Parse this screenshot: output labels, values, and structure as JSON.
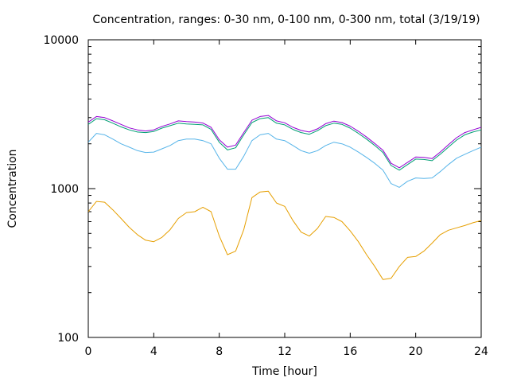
{
  "chart_data": {
    "type": "line",
    "title": "Concentration, ranges: 0-30 nm, 0-100 nm, 0-300 nm, total (3/19/19)",
    "xlabel": "Time [hour]",
    "ylabel": "Concentration",
    "xlim": [
      0,
      24
    ],
    "ylim": [
      100,
      10000
    ],
    "yscale": "log",
    "grid": false,
    "legend": "none",
    "xticks": [
      "0",
      "4",
      "8",
      "12",
      "16",
      "20",
      "24"
    ],
    "yticks": [
      "100",
      "1000",
      "10000"
    ],
    "x": [
      0,
      0.5,
      1,
      1.5,
      2,
      2.5,
      3,
      3.5,
      4,
      4.5,
      5,
      5.5,
      6,
      6.5,
      7,
      7.5,
      8,
      8.5,
      9,
      9.5,
      10,
      10.5,
      11,
      11.5,
      12,
      12.5,
      13,
      13.5,
      14,
      14.5,
      15,
      15.5,
      16,
      16.5,
      17,
      17.5,
      18,
      18.5,
      19,
      19.5,
      20,
      20.5,
      21,
      21.5,
      22,
      22.5,
      23,
      23.5,
      24
    ],
    "series": [
      {
        "color": "#e69f00",
        "values": [
          700,
          820,
          810,
          720,
          630,
          550,
          490,
          450,
          440,
          470,
          530,
          630,
          690,
          700,
          750,
          700,
          480,
          360,
          380,
          530,
          870,
          950,
          960,
          800,
          760,
          610,
          510,
          480,
          540,
          650,
          640,
          600,
          520,
          440,
          360,
          300,
          245,
          250,
          300,
          345,
          350,
          380,
          430,
          490,
          525,
          545,
          565,
          590,
          610
        ]
      },
      {
        "color": "#56b4e9",
        "values": [
          2050,
          2350,
          2300,
          2150,
          2000,
          1900,
          1800,
          1750,
          1760,
          1850,
          1950,
          2100,
          2150,
          2150,
          2100,
          2000,
          1600,
          1350,
          1350,
          1650,
          2100,
          2300,
          2350,
          2150,
          2100,
          1950,
          1800,
          1730,
          1800,
          1950,
          2050,
          2000,
          1900,
          1760,
          1620,
          1480,
          1330,
          1080,
          1020,
          1120,
          1180,
          1170,
          1180,
          1300,
          1450,
          1600,
          1700,
          1800,
          1900
        ]
      },
      {
        "color": "#009e73",
        "values": [
          2700,
          2950,
          2900,
          2750,
          2600,
          2480,
          2400,
          2380,
          2420,
          2550,
          2650,
          2750,
          2720,
          2700,
          2680,
          2500,
          2050,
          1820,
          1880,
          2300,
          2780,
          2950,
          3000,
          2750,
          2680,
          2500,
          2380,
          2320,
          2450,
          2650,
          2750,
          2700,
          2550,
          2350,
          2150,
          1950,
          1750,
          1430,
          1330,
          1450,
          1580,
          1570,
          1540,
          1700,
          1900,
          2120,
          2300,
          2400,
          2480
        ]
      },
      {
        "color": "#9400d3",
        "values": [
          2800,
          3050,
          3000,
          2850,
          2700,
          2560,
          2480,
          2440,
          2480,
          2620,
          2720,
          2850,
          2820,
          2800,
          2760,
          2580,
          2130,
          1900,
          1960,
          2380,
          2880,
          3050,
          3100,
          2850,
          2770,
          2580,
          2460,
          2400,
          2520,
          2730,
          2840,
          2780,
          2630,
          2430,
          2220,
          2010,
          1810,
          1480,
          1380,
          1500,
          1630,
          1620,
          1590,
          1760,
          1970,
          2200,
          2380,
          2480,
          2580
        ]
      }
    ]
  }
}
